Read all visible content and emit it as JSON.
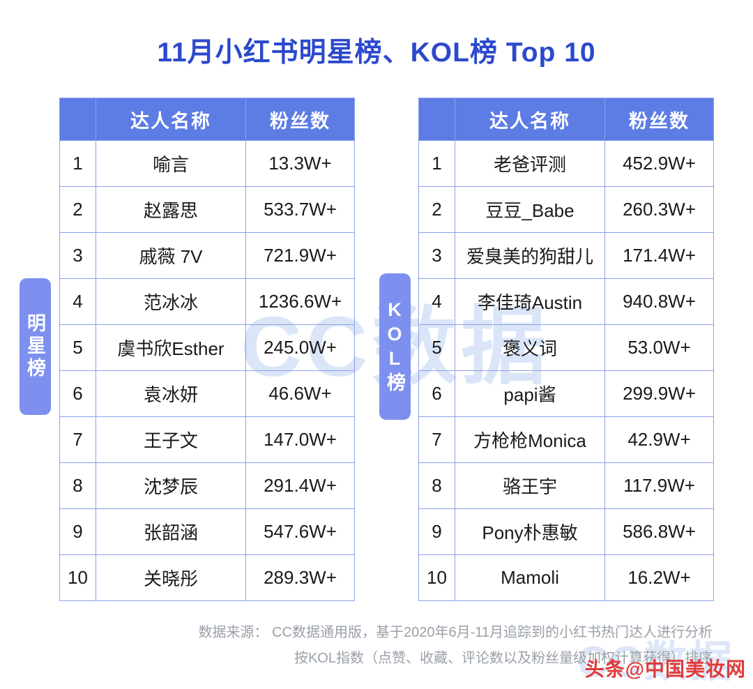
{
  "title": "11月小红书明星榜、KOL榜 Top 10",
  "watermark": "CC数据",
  "chart_data": [
    {
      "type": "table",
      "title": "明星榜",
      "columns": [
        "",
        "达人名称",
        "粉丝数"
      ],
      "rows": [
        [
          "1",
          "喻言",
          "13.3W+"
        ],
        [
          "2",
          "赵露思",
          "533.7W+"
        ],
        [
          "3",
          "戚薇 7V",
          "721.9W+"
        ],
        [
          "4",
          "范冰冰",
          "1236.6W+"
        ],
        [
          "5",
          "虞书欣Esther",
          "245.0W+"
        ],
        [
          "6",
          "袁冰妍",
          "46.6W+"
        ],
        [
          "7",
          "王子文",
          "147.0W+"
        ],
        [
          "8",
          "沈梦辰",
          "291.4W+"
        ],
        [
          "9",
          "张韶涵",
          "547.6W+"
        ],
        [
          "10",
          "关晓彤",
          "289.3W+"
        ]
      ]
    },
    {
      "type": "table",
      "title": "KOL榜",
      "columns": [
        "",
        "达人名称",
        "粉丝数"
      ],
      "rows": [
        [
          "1",
          "老爸评测",
          "452.9W+"
        ],
        [
          "2",
          "豆豆_Babe",
          "260.3W+"
        ],
        [
          "3",
          "爱臭美的狗甜儿",
          "171.4W+"
        ],
        [
          "4",
          "李佳琦Austin",
          "940.8W+"
        ],
        [
          "5",
          "褒义词",
          "53.0W+"
        ],
        [
          "6",
          "papi酱",
          "299.9W+"
        ],
        [
          "7",
          "方枪枪Monica",
          "42.9W+"
        ],
        [
          "8",
          "骆王宇",
          "117.9W+"
        ],
        [
          "9",
          "Pony朴惠敏",
          "586.8W+"
        ],
        [
          "10",
          "Mamoli",
          "16.2W+"
        ]
      ]
    }
  ],
  "footer": {
    "line1": "数据来源： CC数据通用版，基于2020年6月-11月追踪到的小红书热门达人进行分析",
    "line2": "按KOL指数（点赞、收藏、评论数以及粉丝量级加权计算获得）排序"
  },
  "credit": "头条@中国美妆网",
  "colors": {
    "title": "#2b49cc",
    "header_bg": "#5d7ce4",
    "side_tab_bg": "#7d90f0",
    "table_border": "#8ca0ea",
    "watermark": "#bcd0f3",
    "footer_text": "#9aa0a8",
    "credit_text": "#e23a3a"
  }
}
